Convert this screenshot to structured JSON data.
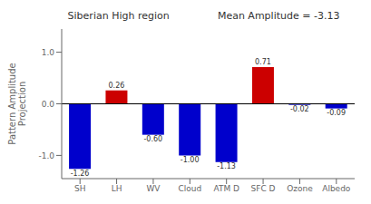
{
  "chart_data": {
    "type": "bar",
    "title": "Siberian High region",
    "subtitle": "Mean Amplitude = -3.13",
    "ylabel": "Pattern Amplitude\nProjection",
    "categories": [
      "SH",
      "LH",
      "WV",
      "Cloud",
      "ATM D",
      "SFC D",
      "Ozone",
      "Albedo"
    ],
    "values": [
      -1.26,
      0.26,
      -0.6,
      -1.0,
      -1.13,
      0.71,
      -0.02,
      -0.09
    ],
    "value_labels": [
      "-1.26",
      "0.26",
      "-0.60",
      "-1.00",
      "-1.13",
      "0.71",
      "-0.02",
      "-0.09"
    ],
    "data_labels": true,
    "colors": [
      "#0000cc",
      "#cc0000",
      "#0000cc",
      "#0000cc",
      "#0000cc",
      "#cc0000",
      "#0000cc",
      "#0000cc"
    ],
    "ylim": [
      -1.45,
      1.45
    ],
    "yticks": [
      {
        "value": -1.0,
        "label": "-1.0"
      },
      {
        "value": 0.0,
        "label": "0.0"
      },
      {
        "value": 1.0,
        "label": "1.0"
      }
    ],
    "grid": false
  }
}
